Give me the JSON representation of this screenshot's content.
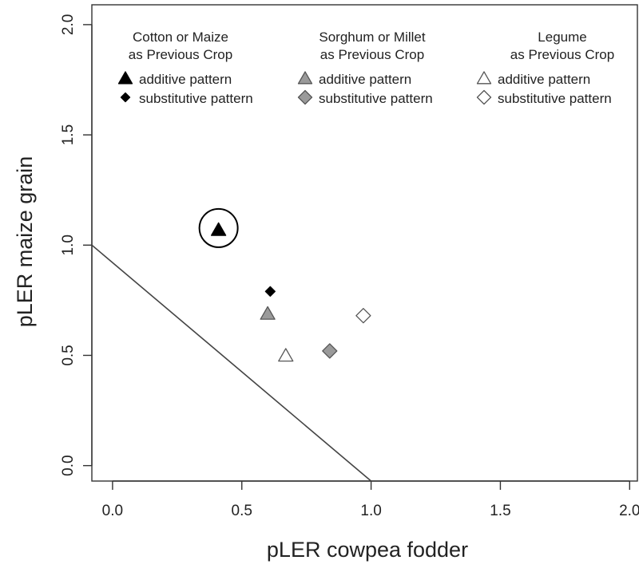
{
  "chart_data": {
    "type": "scatter",
    "title": "",
    "xlabel": "pLER cowpea fodder",
    "ylabel": "pLER maize grain",
    "xlim": [
      -0.08,
      2.03
    ],
    "ylim": [
      -0.07,
      2.09
    ],
    "xticks": [
      "0.0",
      "0.5",
      "1.0",
      "1.5",
      "2.0"
    ],
    "yticks": [
      "0.0",
      "0.5",
      "1.0",
      "1.5",
      "2.0"
    ],
    "grid": false,
    "legend_position": "top",
    "legend_groups": [
      {
        "heading": [
          "Cotton or Maize",
          "as Previous Crop"
        ],
        "color": "#000000"
      },
      {
        "heading": [
          "Sorghum or Millet",
          "as Previous Crop"
        ],
        "color": "#9a9a9a"
      },
      {
        "heading": [
          "Legume",
          "as Previous Crop"
        ],
        "color": "#ffffff"
      }
    ],
    "legend_patterns": [
      "additive pattern",
      "substitutive pattern"
    ],
    "series": [
      {
        "name": "Cotton or Maize additive pattern",
        "marker": "triangle",
        "color": "#000000",
        "x": [
          0.41
        ],
        "y": [
          1.07
        ],
        "circled": true
      },
      {
        "name": "Cotton or Maize substitutive pattern",
        "marker": "diamond",
        "color": "#000000",
        "x": [
          0.61
        ],
        "y": [
          0.79
        ]
      },
      {
        "name": "Sorghum or Millet additive pattern",
        "marker": "triangle",
        "color": "#9a9a9a",
        "x": [
          0.6
        ],
        "y": [
          0.69
        ]
      },
      {
        "name": "Sorghum or Millet substitutive pattern",
        "marker": "diamond",
        "color": "#9a9a9a",
        "x": [
          0.84
        ],
        "y": [
          0.52
        ]
      },
      {
        "name": "Legume additive pattern",
        "marker": "triangle",
        "color": "#ffffff",
        "x": [
          0.67
        ],
        "y": [
          0.5
        ]
      },
      {
        "name": "Legume substitutive pattern",
        "marker": "diamond",
        "color": "#ffffff",
        "x": [
          0.97
        ],
        "y": [
          0.68
        ]
      }
    ],
    "reference_line": {
      "x": [
        -0.08,
        1.0
      ],
      "y": [
        1.0,
        -0.07
      ],
      "equation": "x + y = 1"
    }
  }
}
